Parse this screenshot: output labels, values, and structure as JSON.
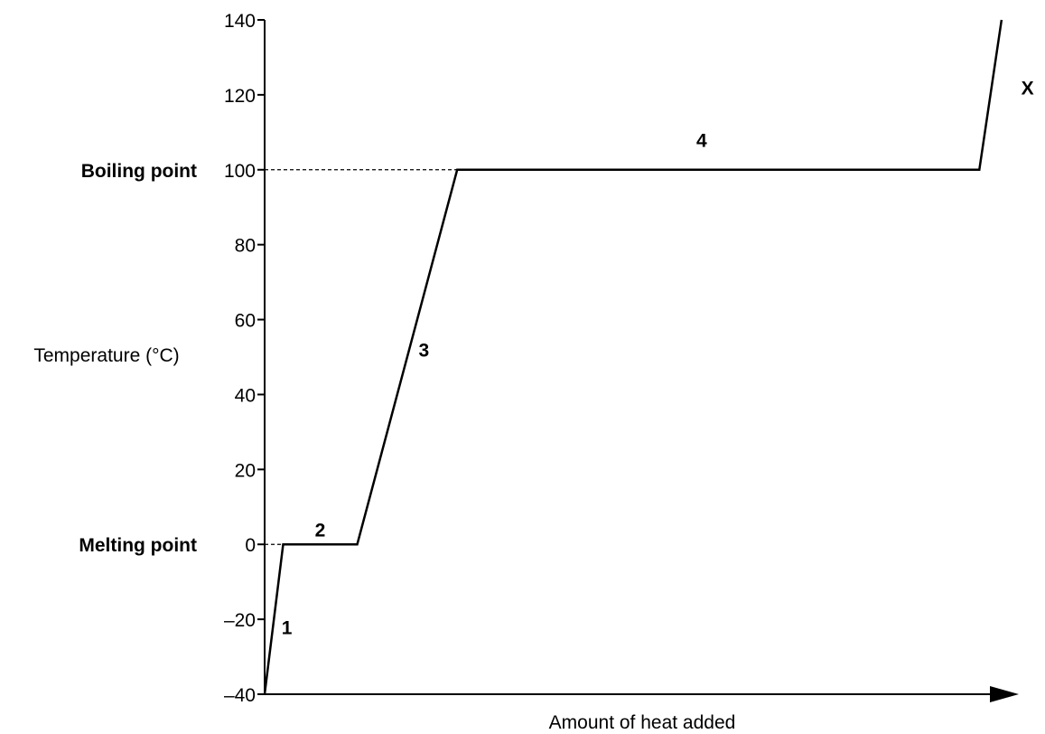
{
  "chart_data": {
    "type": "line",
    "xlabel": "Amount of heat added",
    "ylabel": "Temperature (°C)",
    "ylim": [
      -40,
      140
    ],
    "yticks": [
      -40,
      -20,
      0,
      20,
      40,
      60,
      80,
      100,
      120,
      140
    ],
    "xticks_shown": false,
    "grid": false,
    "series": [
      {
        "x": [
          0,
          5,
          25,
          52,
          193,
          199
        ],
        "y": [
          -40,
          0,
          0,
          100,
          100,
          140
        ]
      }
    ],
    "reference_lines": [
      {
        "label": "Boiling point",
        "value": 100
      },
      {
        "label": "Melting point",
        "value": 0
      }
    ],
    "segment_labels": [
      {
        "text": "1",
        "x": 6,
        "y": -22
      },
      {
        "text": "2",
        "x": 15,
        "y": 4
      },
      {
        "text": "3",
        "x": 43,
        "y": 52
      },
      {
        "text": "4",
        "x": 118,
        "y": 108
      },
      {
        "text": "X",
        "x": 206,
        "y": 122
      }
    ]
  }
}
